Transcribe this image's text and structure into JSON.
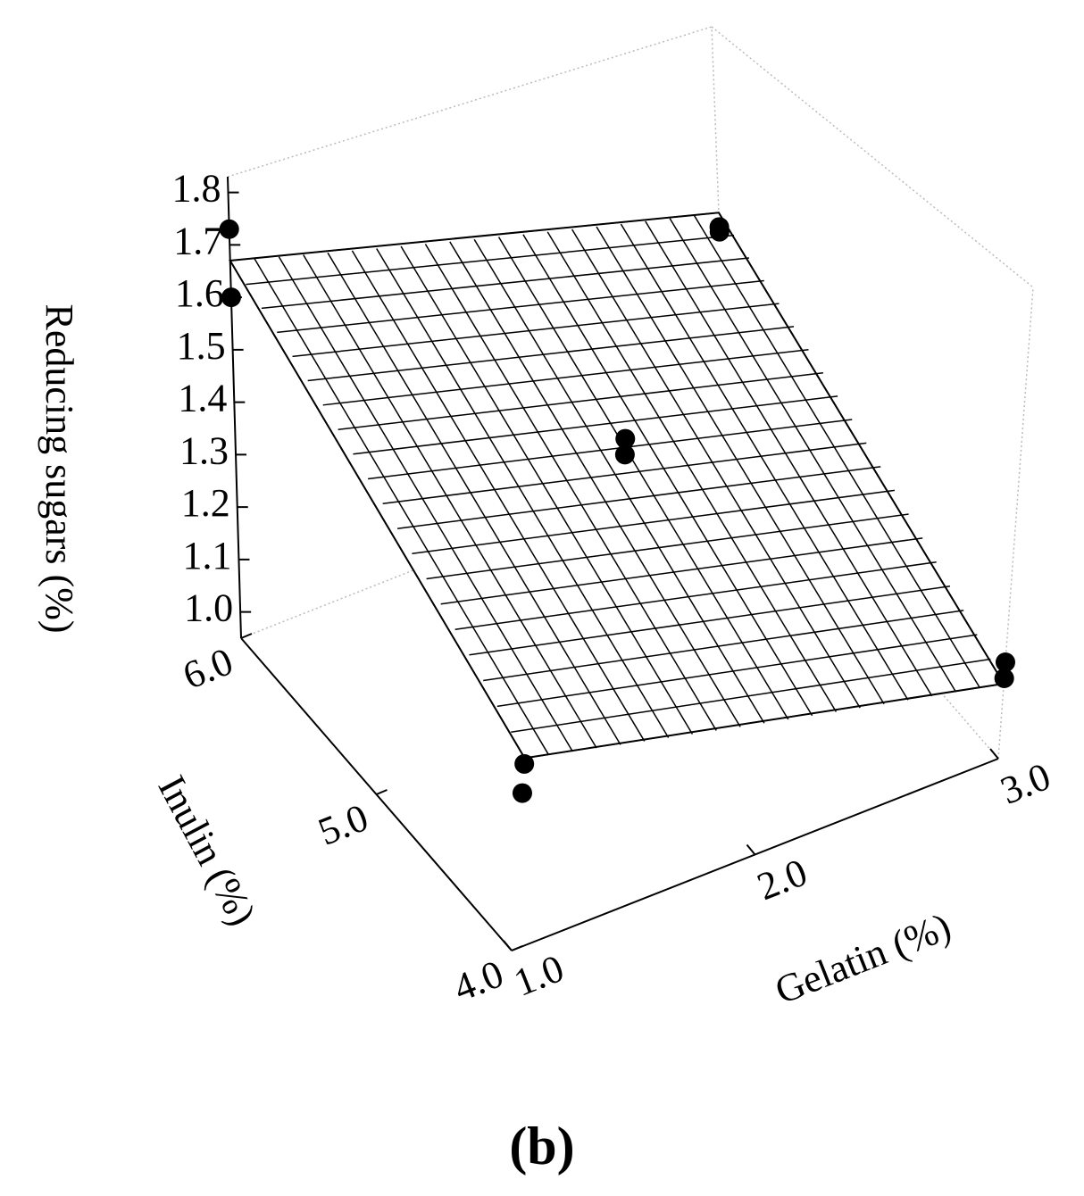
{
  "chart_data": {
    "type": "surface3d",
    "xlabel": "Gelatin  (%)",
    "ylabel": "Inulin (%)",
    "zlabel": "Reducing sugars (%)",
    "panel_label": "(b)",
    "xlim": [
      1,
      3
    ],
    "xticks": [
      {
        "value": 1,
        "label": "1.0"
      },
      {
        "value": 2,
        "label": "2.0"
      },
      {
        "value": 3,
        "label": "3.0"
      }
    ],
    "ylim": [
      4,
      6
    ],
    "yticks": [
      {
        "value": 4,
        "label": "4.0"
      },
      {
        "value": 5,
        "label": "5.0"
      },
      {
        "value": 6,
        "label": "6.0"
      }
    ],
    "zlim": [
      0.95,
      1.83
    ],
    "zticks": [
      {
        "value": 1,
        "label": "1.0"
      },
      {
        "value": 1.1,
        "label": "1.1"
      },
      {
        "value": 1.2,
        "label": "1.2"
      },
      {
        "value": 1.3,
        "label": "1.3"
      },
      {
        "value": 1.4,
        "label": "1.4"
      },
      {
        "value": 1.5,
        "label": "1.5"
      },
      {
        "value": 1.6,
        "label": "1.6"
      },
      {
        "value": 1.7,
        "label": "1.7"
      },
      {
        "value": 1.8,
        "label": "1.8"
      }
    ],
    "surface": {
      "x": [
        1,
        3
      ],
      "y": [
        4,
        6
      ],
      "z": [
        [
          1.28,
          1.09
        ],
        [
          1.67,
          1.44
        ]
      ],
      "divisions": 20,
      "color": "#000000"
    },
    "points": {
      "x": [
        1,
        1,
        3,
        3,
        2,
        2,
        1,
        1,
        3,
        3
      ],
      "y": [
        6,
        6,
        6,
        6,
        5,
        5,
        4,
        4,
        4,
        4
      ],
      "z": [
        1.73,
        1.6,
        1.41,
        1.4,
        1.44,
        1.41,
        1.27,
        1.22,
        1.13,
        1.1
      ],
      "color": "#000000"
    }
  }
}
